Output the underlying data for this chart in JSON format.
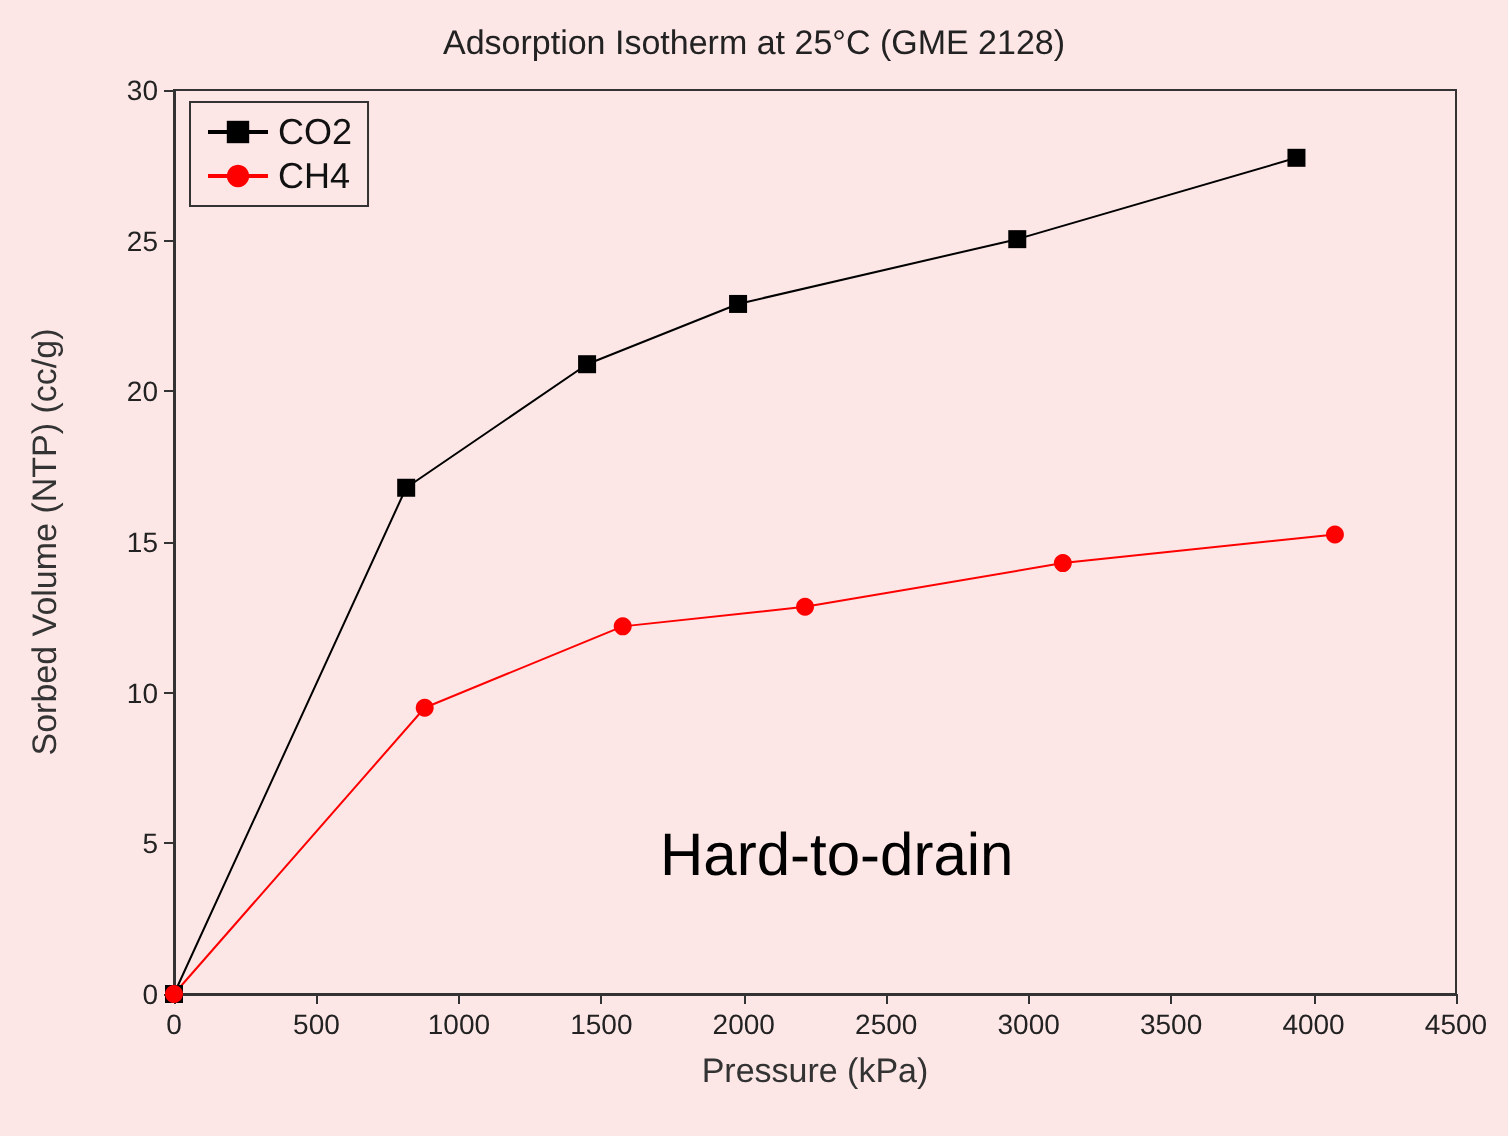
{
  "chart_data": {
    "type": "line",
    "title": "Adsorption Isotherm at 25°C (GME 2128)",
    "xlabel": "Pressure (kPa)",
    "ylabel": "Sorbed Volume (NTP) (cc/g)",
    "series": [
      {
        "name": "CO2",
        "color": "#000000",
        "marker": "square",
        "x": [
          0,
          815,
          1450,
          1980,
          2960,
          3940
        ],
        "values": [
          0,
          16.8,
          20.9,
          22.9,
          25.05,
          27.75
        ]
      },
      {
        "name": "CH4",
        "color": "#ff0000",
        "marker": "circle",
        "x": [
          0,
          880,
          1575,
          2215,
          3120,
          4075
        ],
        "values": [
          0,
          9.5,
          12.2,
          12.85,
          14.3,
          15.25
        ]
      }
    ],
    "xlim": [
      0,
      4500
    ],
    "xticks": [
      0,
      500,
      1000,
      1500,
      2000,
      2500,
      3000,
      3500,
      4000,
      4500
    ],
    "ylim": [
      0,
      30
    ],
    "yticks": [
      0,
      5,
      10,
      15,
      20,
      25,
      30
    ],
    "grid": false,
    "legend": "top left",
    "annotations": [
      "Hard-to-drain"
    ]
  }
}
